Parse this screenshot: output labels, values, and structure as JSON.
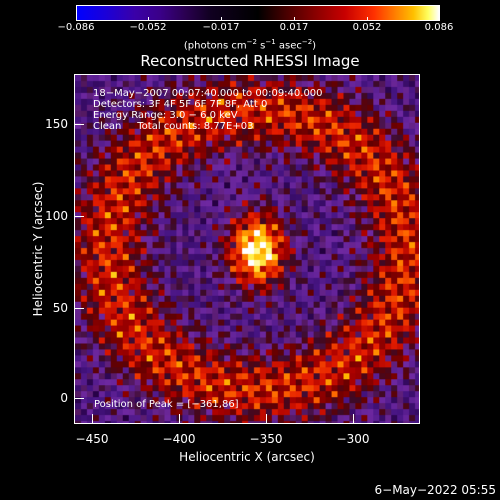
{
  "colorbar": {
    "ticks": [
      "−0.086",
      "−0.052",
      "−0.017",
      "0.017",
      "0.052",
      "0.086"
    ],
    "unit_prefix": "(photons cm",
    "unit_exp1": "−2",
    "unit_mid1": " s",
    "unit_exp2": "−1",
    "unit_mid2": " asec",
    "unit_exp3": "−2",
    "unit_suffix": ")"
  },
  "title": "Reconstructed RHESSI Image",
  "annotations": {
    "line1": "18−May−2007 00:07:40.000 to 00:09:40.000",
    "line2": "Detectors: 3F 4F 5F 6F 7F 8F, Att 0",
    "line3": "Energy Range: 3.0 − 6.0 keV",
    "line4": "Clean     Total counts: 8.77E+03",
    "peak": "Position of Peak = [−361,86]"
  },
  "axes": {
    "xlabel": "Heliocentric X (arcsec)",
    "ylabel": "Heliocentric Y (arcsec)",
    "xticks": [
      "−450",
      "−400",
      "−350",
      "−300"
    ],
    "yticks": [
      "0",
      "50",
      "100",
      "150"
    ],
    "xlim": [
      -460,
      -270
    ],
    "ylim": [
      -15,
      185
    ]
  },
  "footer": {
    "date": "6−May−2022 05:55"
  },
  "image": {
    "peak_x": -361,
    "peak_y": 86
  }
}
